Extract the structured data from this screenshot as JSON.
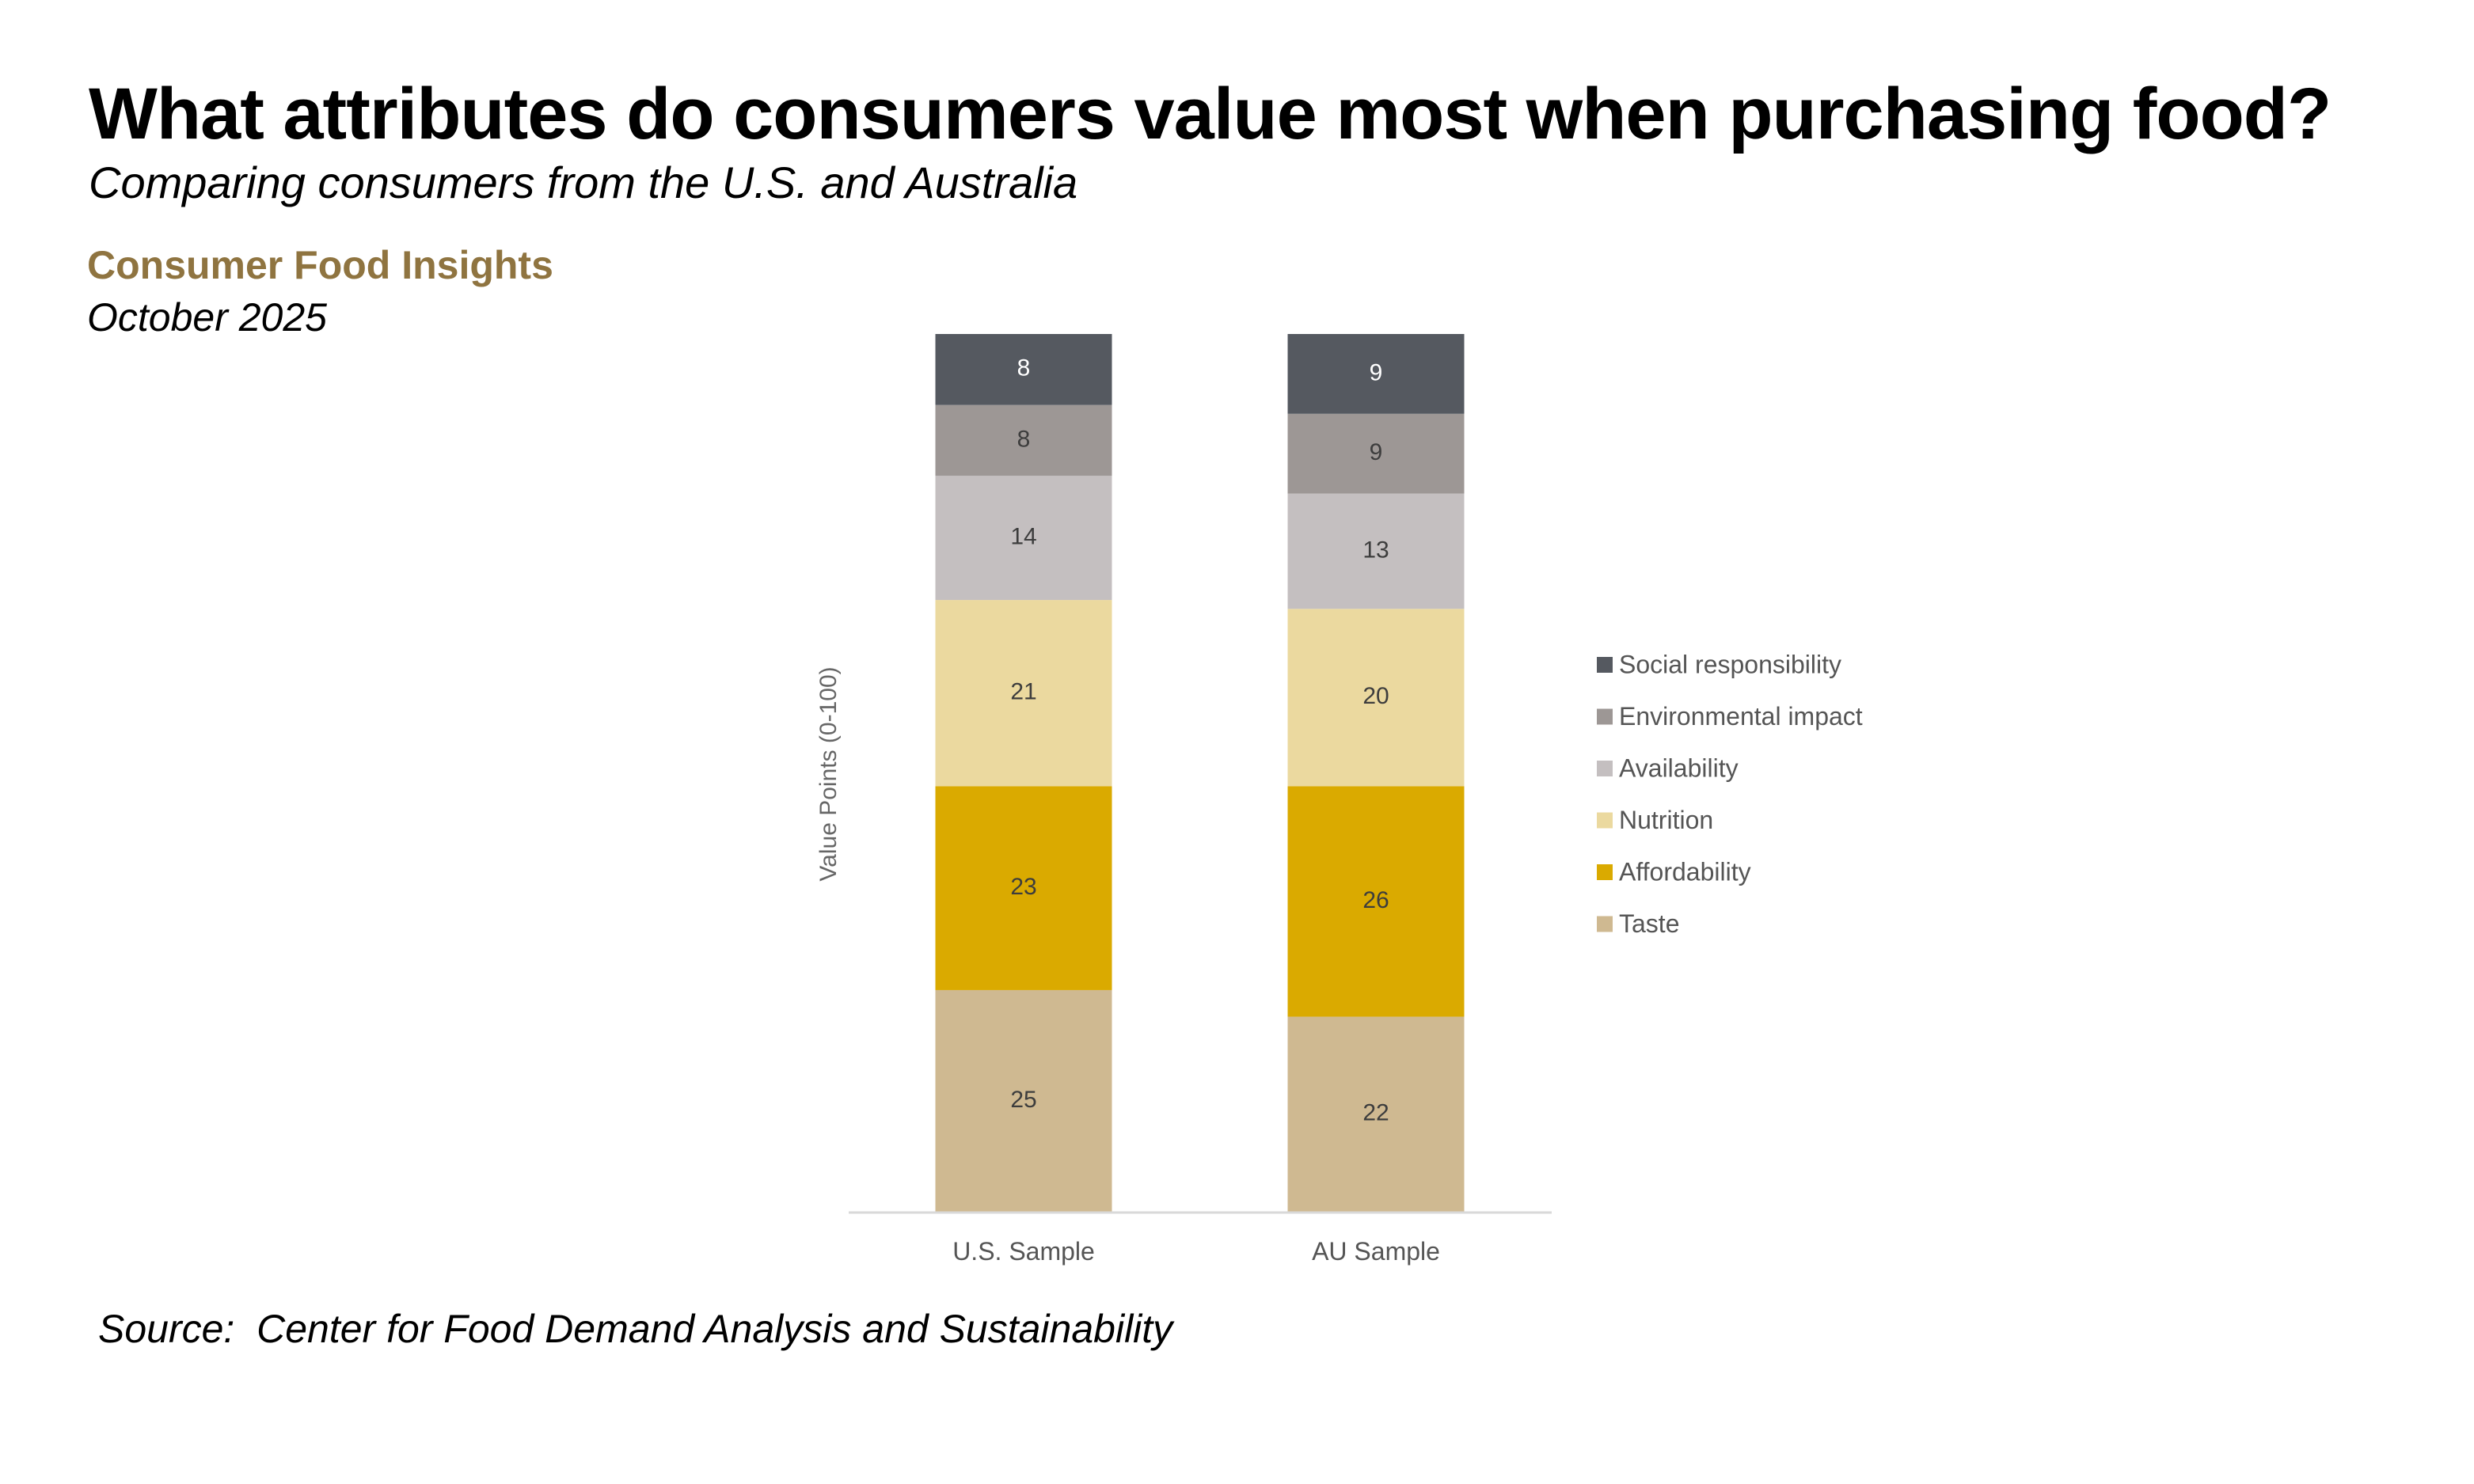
{
  "header": {
    "title": "What attributes do consumers value most when purchasing food?",
    "subtitle": "Comparing consumers from the U.S. and Australia",
    "brand": "Consumer Food Insights",
    "date": "October 2025"
  },
  "footer": {
    "source": "Source:  Center for Food Demand Analysis and Sustainability"
  },
  "chart_data": {
    "type": "bar",
    "stacked": true,
    "title": "What attributes do consumers value most when purchasing food?",
    "subtitle": "Comparing consumers from the U.S. and Australia",
    "xlabel": "",
    "ylabel": "Value Points (0-100)",
    "ylim": [
      0,
      100
    ],
    "grid": false,
    "legend_position": "right",
    "categories": [
      "U.S. Sample",
      "AU Sample"
    ],
    "series": [
      {
        "name": "Taste",
        "values": [
          25,
          22
        ],
        "color": "#cfb991",
        "label_color": "#3d3d3d"
      },
      {
        "name": "Affordability",
        "values": [
          23,
          26
        ],
        "color": "#daaa00",
        "label_color": "#3d3d3d"
      },
      {
        "name": "Nutrition",
        "values": [
          21,
          20
        ],
        "color": "#ebd99f",
        "label_color": "#3d3d3d"
      },
      {
        "name": "Availability",
        "values": [
          14,
          13
        ],
        "color": "#c4bfc0",
        "label_color": "#3d3d3d"
      },
      {
        "name": "Environmental impact",
        "values": [
          8,
          9
        ],
        "color": "#9d9795",
        "label_color": "#3d3d3d"
      },
      {
        "name": "Social responsibility",
        "values": [
          8,
          9
        ],
        "color": "#555960",
        "label_color": "#ffffff"
      }
    ],
    "legend_order": [
      "Social responsibility",
      "Environmental impact",
      "Availability",
      "Nutrition",
      "Affordability",
      "Taste"
    ]
  }
}
